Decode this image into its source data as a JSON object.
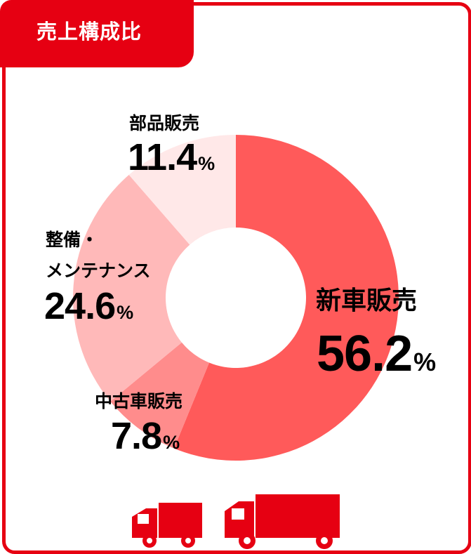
{
  "header": {
    "title": "売上構成比"
  },
  "colors": {
    "brand": "#e60012",
    "slice_new": "#ff5a5a",
    "slice_used": "#ff8c8c",
    "slice_service": "#ffb9b9",
    "slice_parts": "#ffe8e8"
  },
  "chart_data": {
    "type": "pie",
    "title": "売上構成比",
    "unit": "%",
    "slices": [
      {
        "label": "新車販売",
        "value": 56.2,
        "display": "56.2"
      },
      {
        "label": "中古車販売",
        "value": 7.8,
        "display": "7.8"
      },
      {
        "label": "整備・メンテナンス",
        "label_lines": [
          "整備・",
          "メンテナンス"
        ],
        "value": 24.6,
        "display": "24.6"
      },
      {
        "label": "部品販売",
        "value": 11.4,
        "display": "11.4"
      }
    ]
  },
  "footer": {
    "icons": [
      "small-truck-icon",
      "large-truck-icon"
    ]
  }
}
